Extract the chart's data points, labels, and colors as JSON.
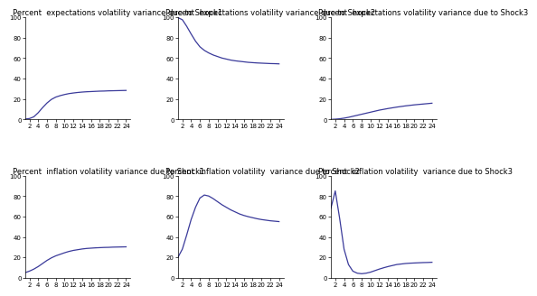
{
  "titles": [
    "Percent  expectations volatility variance due to Shock1",
    "Percent  expectations volatility variance due to Shock2",
    "Percent  expectations volatility variance due to Shock3",
    "Percent  inflation volatility variance due to Shock1",
    "Percent  inflation volatility  variance due to Shock2",
    "Percent  inflation volatility  variance due to Shock3"
  ],
  "x": [
    1,
    2,
    3,
    4,
    5,
    6,
    7,
    8,
    9,
    10,
    11,
    12,
    13,
    14,
    15,
    16,
    17,
    18,
    19,
    20,
    21,
    22,
    23,
    24
  ],
  "xticks": [
    2,
    4,
    6,
    8,
    10,
    12,
    14,
    16,
    18,
    20,
    22,
    24
  ],
  "yticks": [
    0,
    20,
    40,
    60,
    80,
    100
  ],
  "ylim": [
    0,
    100
  ],
  "xlim": [
    1,
    25
  ],
  "line_color": "#3a3a9a",
  "line_width": 0.9,
  "curves": {
    "exp_shock1": [
      0.3,
      0.8,
      2.5,
      6.5,
      11.5,
      16.0,
      19.5,
      21.8,
      23.2,
      24.3,
      25.2,
      25.8,
      26.3,
      26.7,
      27.0,
      27.2,
      27.4,
      27.6,
      27.7,
      27.9,
      28.0,
      28.1,
      28.2,
      28.3
    ],
    "exp_shock2": [
      99.5,
      97.5,
      91.0,
      83.5,
      76.5,
      71.0,
      67.5,
      65.0,
      63.0,
      61.5,
      60.0,
      59.0,
      58.0,
      57.3,
      56.8,
      56.3,
      55.8,
      55.5,
      55.2,
      55.0,
      54.8,
      54.6,
      54.5,
      54.3
    ],
    "exp_shock3": [
      0.0,
      0.2,
      0.6,
      1.2,
      2.0,
      3.0,
      4.0,
      5.0,
      6.0,
      7.0,
      8.0,
      9.0,
      9.8,
      10.6,
      11.3,
      12.0,
      12.6,
      13.2,
      13.7,
      14.2,
      14.6,
      15.0,
      15.4,
      15.8
    ],
    "inf_shock1": [
      5.0,
      6.5,
      8.5,
      11.0,
      14.0,
      17.0,
      19.5,
      21.5,
      23.0,
      24.5,
      25.8,
      26.8,
      27.5,
      28.2,
      28.7,
      29.0,
      29.3,
      29.5,
      29.7,
      29.8,
      30.0,
      30.1,
      30.2,
      30.3
    ],
    "inf_shock2": [
      20.0,
      28.0,
      42.0,
      57.0,
      69.0,
      78.0,
      81.0,
      80.0,
      77.5,
      74.5,
      71.5,
      69.0,
      66.5,
      64.5,
      62.5,
      61.0,
      59.8,
      58.8,
      57.8,
      57.0,
      56.4,
      55.8,
      55.4,
      55.0
    ],
    "inf_shock3": [
      68.0,
      85.0,
      58.0,
      28.0,
      13.0,
      6.5,
      4.5,
      4.0,
      4.5,
      5.5,
      7.0,
      8.5,
      9.8,
      11.0,
      12.0,
      13.0,
      13.5,
      14.0,
      14.3,
      14.5,
      14.7,
      14.9,
      15.0,
      15.2
    ]
  },
  "title_fontsize": 6.0,
  "tick_fontsize": 5.0,
  "bg_color": "#ffffff",
  "fig_bg": "#ffffff"
}
